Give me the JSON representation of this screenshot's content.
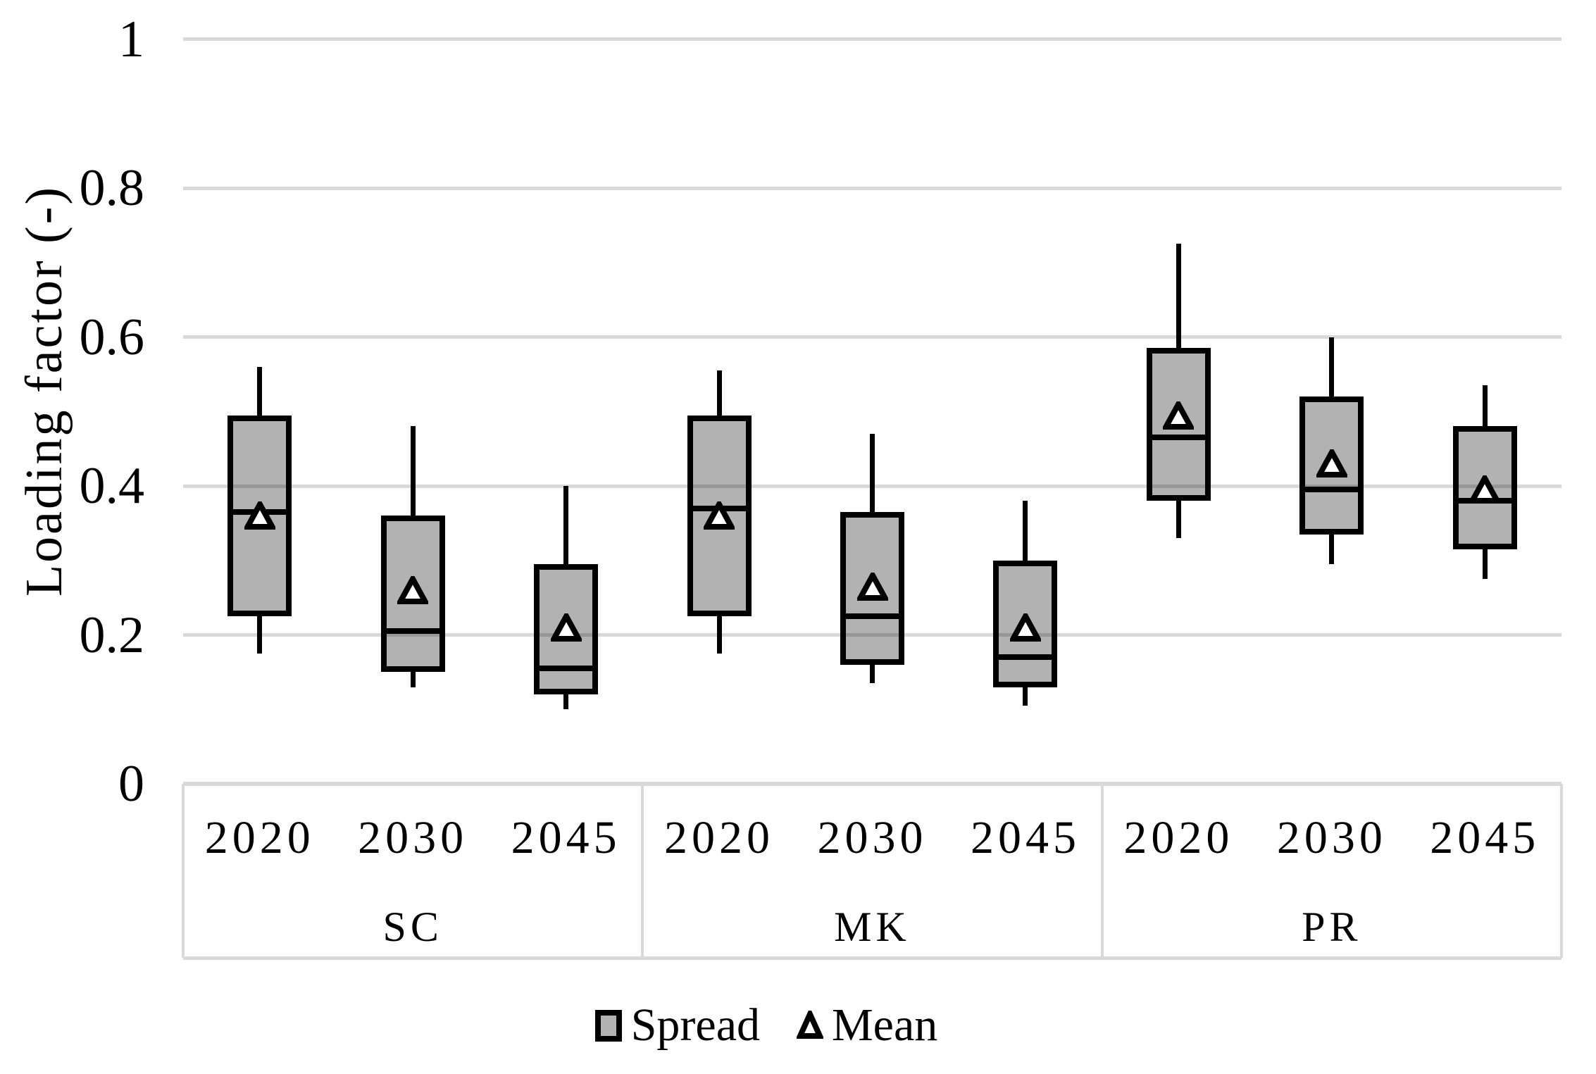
{
  "chart_data": {
    "type": "boxplot",
    "ylabel": "Loading factor (-)",
    "ylim": [
      0,
      1
    ],
    "yticks": [
      0,
      0.2,
      0.4,
      0.6,
      0.8,
      1
    ],
    "ytick_labels": [
      "0",
      "0.2",
      "0.4",
      "0.6",
      "0.8",
      "1"
    ],
    "grid": "horizontal-gridlines-on",
    "legend_position": "bottom-center",
    "legend": {
      "spread_label": "Spread",
      "mean_label": "Mean"
    },
    "groups": [
      {
        "label": "SC",
        "years": [
          "2020",
          "2030",
          "2045"
        ]
      },
      {
        "label": "MK",
        "years": [
          "2020",
          "2030",
          "2045"
        ]
      },
      {
        "label": "PR",
        "years": [
          "2020",
          "2030",
          "2045"
        ]
      }
    ],
    "series": [
      {
        "group": "SC",
        "year": "2020",
        "min": 0.175,
        "q1": 0.225,
        "median": 0.365,
        "mean": 0.36,
        "q3": 0.495,
        "max": 0.56
      },
      {
        "group": "SC",
        "year": "2030",
        "min": 0.13,
        "q1": 0.15,
        "median": 0.205,
        "mean": 0.26,
        "q3": 0.36,
        "max": 0.48
      },
      {
        "group": "SC",
        "year": "2045",
        "min": 0.1,
        "q1": 0.12,
        "median": 0.155,
        "mean": 0.21,
        "q3": 0.295,
        "max": 0.4
      },
      {
        "group": "MK",
        "year": "2020",
        "min": 0.175,
        "q1": 0.225,
        "median": 0.37,
        "mean": 0.36,
        "q3": 0.495,
        "max": 0.555
      },
      {
        "group": "MK",
        "year": "2030",
        "min": 0.135,
        "q1": 0.16,
        "median": 0.225,
        "mean": 0.265,
        "q3": 0.365,
        "max": 0.47
      },
      {
        "group": "MK",
        "year": "2045",
        "min": 0.105,
        "q1": 0.13,
        "median": 0.17,
        "mean": 0.21,
        "q3": 0.3,
        "max": 0.38
      },
      {
        "group": "PR",
        "year": "2020",
        "min": 0.33,
        "q1": 0.38,
        "median": 0.465,
        "mean": 0.495,
        "q3": 0.585,
        "max": 0.725
      },
      {
        "group": "PR",
        "year": "2030",
        "min": 0.295,
        "q1": 0.335,
        "median": 0.395,
        "mean": 0.43,
        "q3": 0.52,
        "max": 0.6
      },
      {
        "group": "PR",
        "year": "2045",
        "min": 0.275,
        "q1": 0.315,
        "median": 0.38,
        "mean": 0.395,
        "q3": 0.48,
        "max": 0.535
      }
    ],
    "colors": {
      "box_fill": "#b3b3b3",
      "box_border": "#000000",
      "gridline": "#d9d9d9",
      "mean_marker_fill": "#ffffff",
      "mean_marker_stroke": "#000000",
      "text": "#000000"
    }
  }
}
